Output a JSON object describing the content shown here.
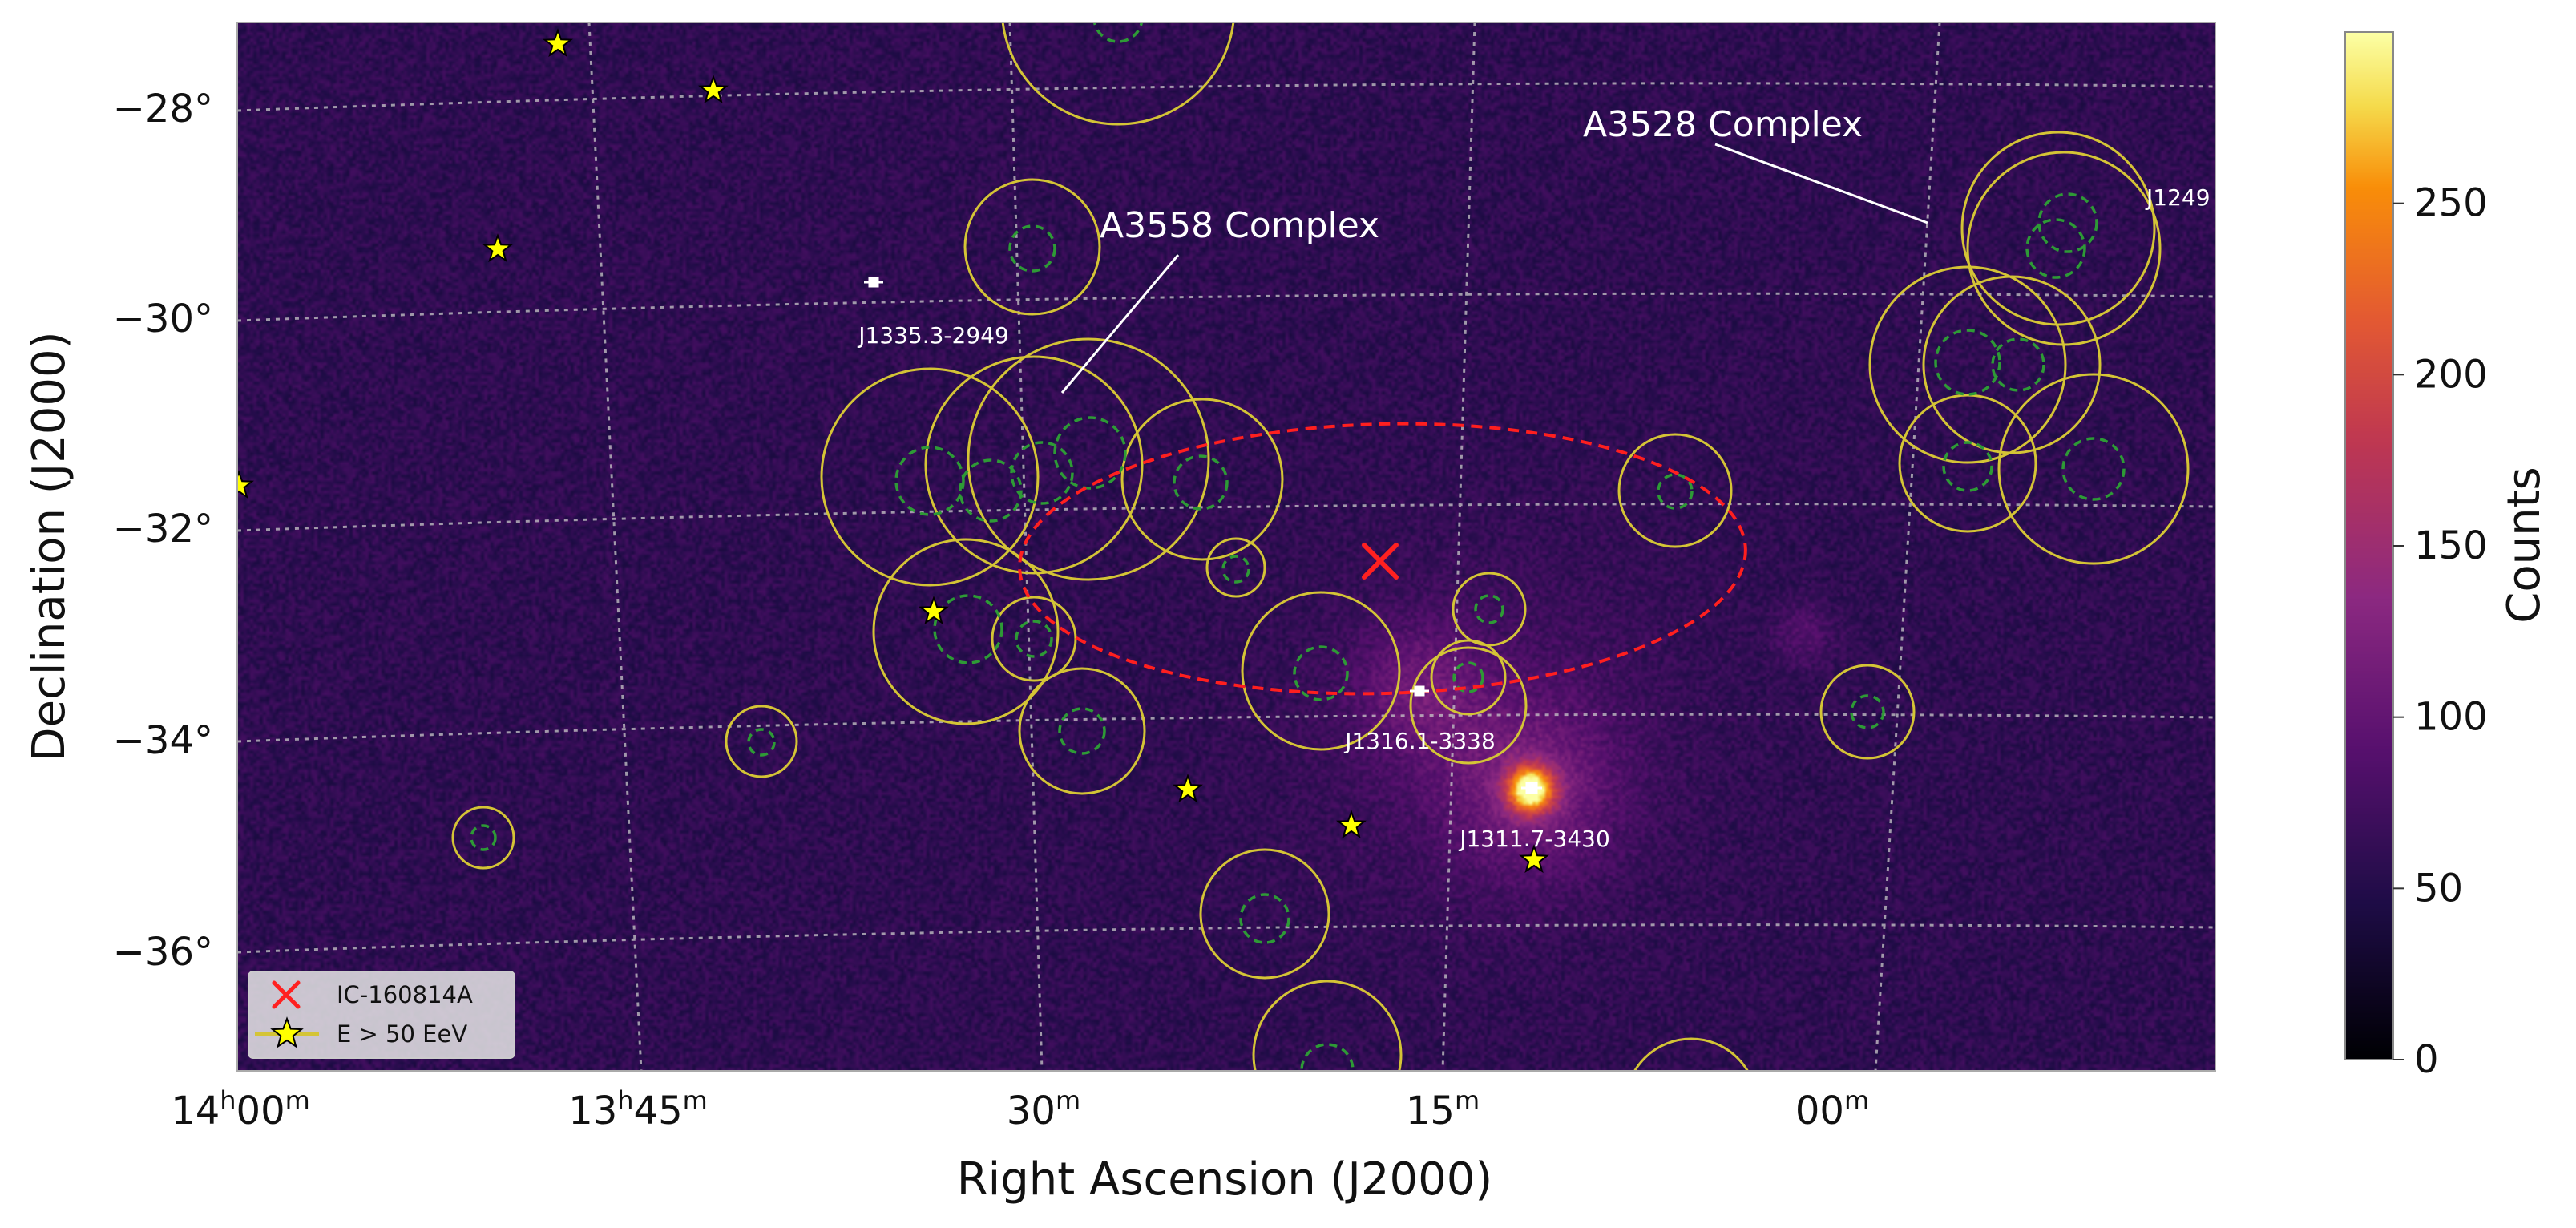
{
  "plot": {
    "xlabel": "Right Ascension (J2000)",
    "ylabel": "Declination (J2000)",
    "x_ticks": [
      {
        "main": "14",
        "sup1": "h",
        "main2": "00",
        "sup2": "m"
      },
      {
        "main": "13",
        "sup1": "h",
        "main2": "45",
        "sup2": "m"
      },
      {
        "main": "",
        "sup1": "",
        "main2": "30",
        "sup2": "m"
      },
      {
        "main": "",
        "sup1": "",
        "main2": "15",
        "sup2": "m"
      },
      {
        "main": "",
        "sup1": "",
        "main2": "00",
        "sup2": "m"
      }
    ],
    "y_ticks": [
      "−28°",
      "−30°",
      "−32°",
      "−34°",
      "−36°"
    ]
  },
  "colorbar": {
    "label": "Counts",
    "ticks": [
      0,
      50,
      100,
      150,
      200,
      250
    ],
    "range": [
      0,
      300
    ],
    "colormap": "inferno"
  },
  "annotations": {
    "a3528": "A3528 Complex",
    "a3558": "A3558 Complex",
    "j1249": "J1249",
    "j1335": "J1335.3-2949",
    "j1316": "J1316.1-3338",
    "j1311": "J1311.7-3430"
  },
  "legend": {
    "neutrino": "IC-160814A",
    "uhecr": "E > 50 EeV"
  },
  "colors": {
    "sky_base": "#2e1454",
    "cluster_circle": "#d4c436",
    "cluster_core": "#2e9a36",
    "error_ellipse": "#ff1f1f",
    "neutrino_marker": "#ff2020",
    "uhecr_star": "#ffff00",
    "grid": "#c8c8c8"
  }
}
